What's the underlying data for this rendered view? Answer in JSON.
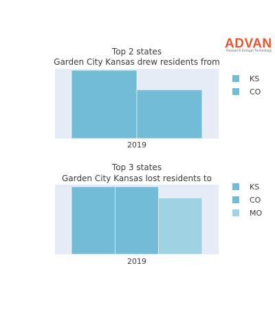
{
  "brand": {
    "name": "ADVAN",
    "tagline": "Research through Technology",
    "color": "#e8542c"
  },
  "colors": {
    "plot_bg": "#e5ecf6",
    "bar_a": "#72bcd5",
    "bar_b": "#9fd2e3",
    "text": "#3a3a3a"
  },
  "chart_data": [
    {
      "type": "bar",
      "title_lines": [
        "Top 2 states",
        "Garden City Kansas drew residents from"
      ],
      "categories": [
        "2019"
      ],
      "xlabel": "",
      "ylabel": "",
      "ylim": [
        0,
        1.0
      ],
      "grid": false,
      "legend_position": "right",
      "series": [
        {
          "name": "KS",
          "values": [
            0.98
          ],
          "color": "#72bcd5"
        },
        {
          "name": "CO",
          "values": [
            0.7
          ],
          "color": "#72bcd5"
        }
      ]
    },
    {
      "type": "bar",
      "title_lines": [
        "Top 3 states",
        "Garden City Kansas lost residents to"
      ],
      "categories": [
        "2019"
      ],
      "xlabel": "",
      "ylabel": "",
      "ylim": [
        0,
        1.0
      ],
      "grid": false,
      "legend_position": "right",
      "series": [
        {
          "name": "KS",
          "values": [
            0.97
          ],
          "color": "#72bcd5"
        },
        {
          "name": "CO",
          "values": [
            0.97
          ],
          "color": "#72bcd5"
        },
        {
          "name": "MO",
          "values": [
            0.81
          ],
          "color": "#9fd2e3"
        }
      ]
    }
  ]
}
